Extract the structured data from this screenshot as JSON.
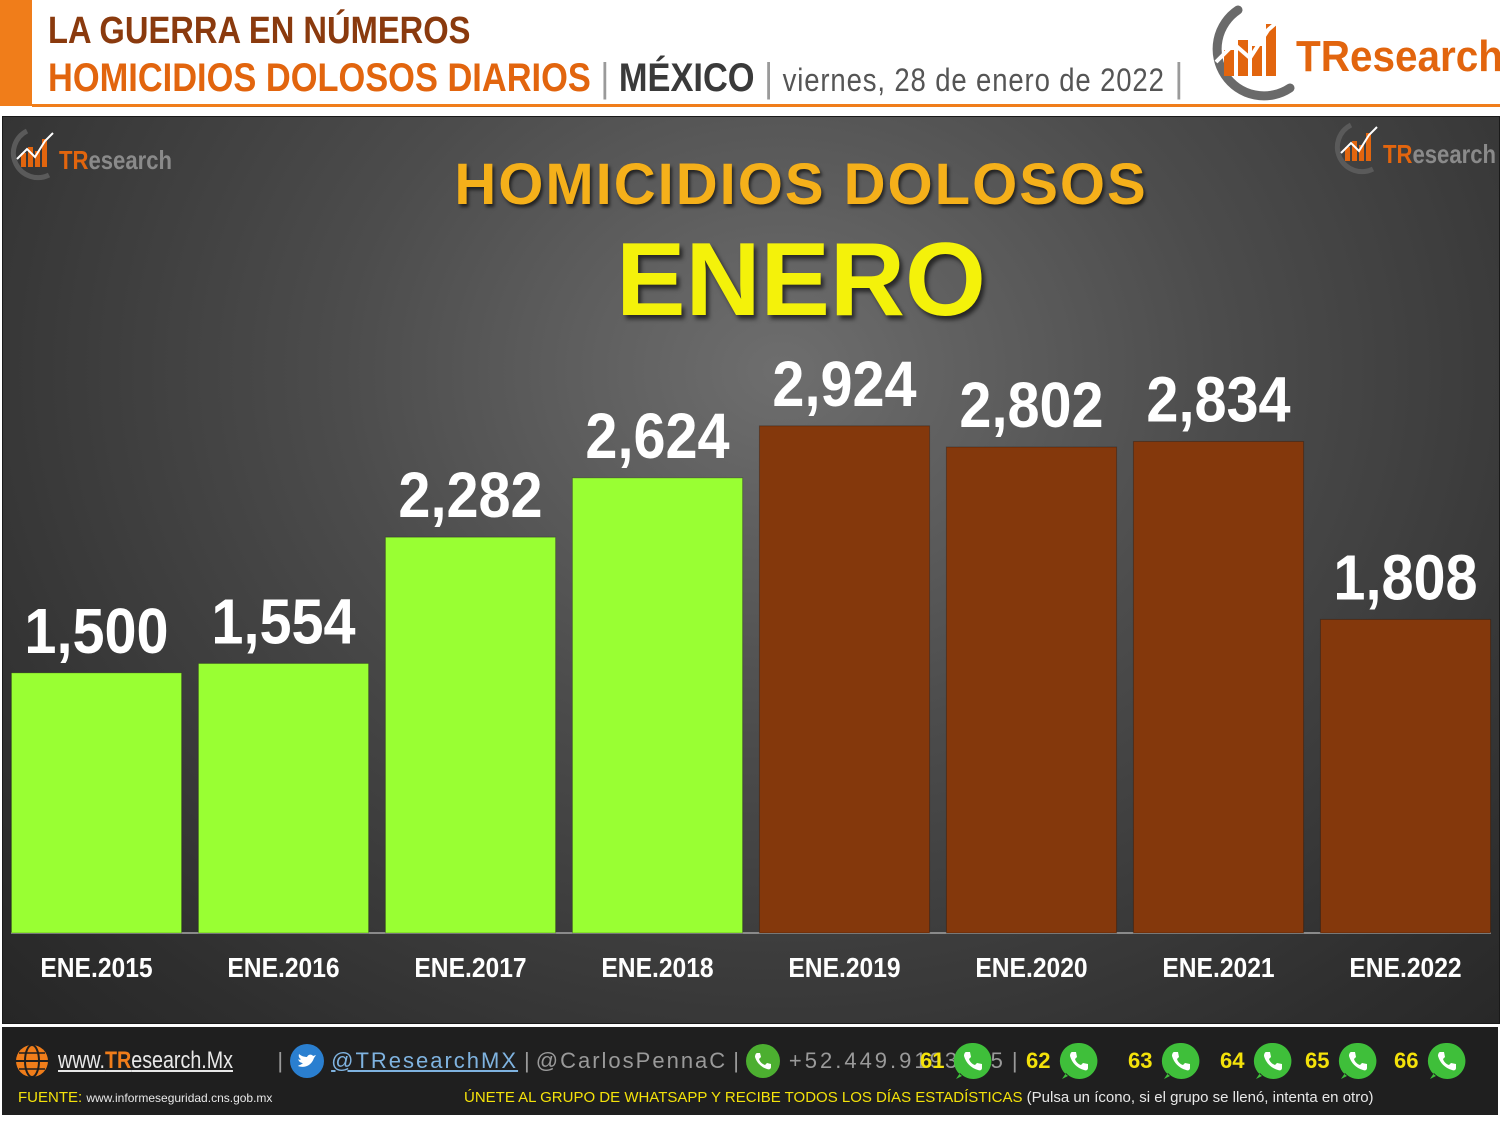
{
  "header": {
    "line1": "LA GUERRA EN NÚMEROS",
    "line2_a": "HOMICIDIOS DOLOSOS DIARIOS",
    "sep": "|",
    "line2_b": "MÉXICO",
    "line2_c": "viernes, 28 de enero de 2022",
    "brand": "TResearch",
    "brand_T": "TR",
    "brand_rest": "esearch"
  },
  "chart_data": {
    "type": "bar",
    "title": "HOMICIDIOS  DOLOSOS",
    "subtitle": "ENERO",
    "categories": [
      "ENE.2015",
      "ENE.2016",
      "ENE.2017",
      "ENE.2018",
      "ENE.2019",
      "ENE.2020",
      "ENE.2021",
      "ENE.2022"
    ],
    "values": [
      1500,
      1554,
      2282,
      2624,
      2924,
      2802,
      2834,
      1808
    ],
    "value_labels": [
      "1,500",
      "1,554",
      "2,282",
      "2,624",
      "2,924",
      "2,802",
      "2,834",
      "1,808"
    ],
    "bar_colors": [
      "#99ff33",
      "#99ff33",
      "#99ff33",
      "#99ff33",
      "#84380c",
      "#84380c",
      "#84380c",
      "#84380c"
    ],
    "ylim": [
      0,
      3000
    ],
    "grid": false,
    "legend": "none"
  },
  "colors": {
    "accent": "#f07d1a",
    "green_bar": "#99ff33",
    "brown_bar": "#84380c",
    "title_gold": "#f5b01a",
    "subtitle_yellow": "#f4f20a"
  },
  "footer": {
    "web_prefix": "www.",
    "web_brand": "TR",
    "web_rest": "esearch.Mx",
    "twitter": "@TResearchMX",
    "instagram": "@CarlosPennaC",
    "phone": "+52.449.9193645",
    "sep": "|",
    "whatsapp_groups": [
      "61",
      "62",
      "63",
      "64",
      "65",
      "66"
    ],
    "source_label": "FUENTE:",
    "source_url": "www.informeseguridad.cns.gob.mx",
    "join_text": "ÚNETE AL GRUPO DE WHATSAPP Y RECIBE TODOS LOS DÍAS ESTADÍSTICAS",
    "join_note": "(Pulsa un ícono, si el grupo se llenó, intenta en otro)",
    "icons": [
      "globe-icon",
      "twitter-icon",
      "whatsapp-phone-icon",
      "whatsapp-icon"
    ]
  }
}
